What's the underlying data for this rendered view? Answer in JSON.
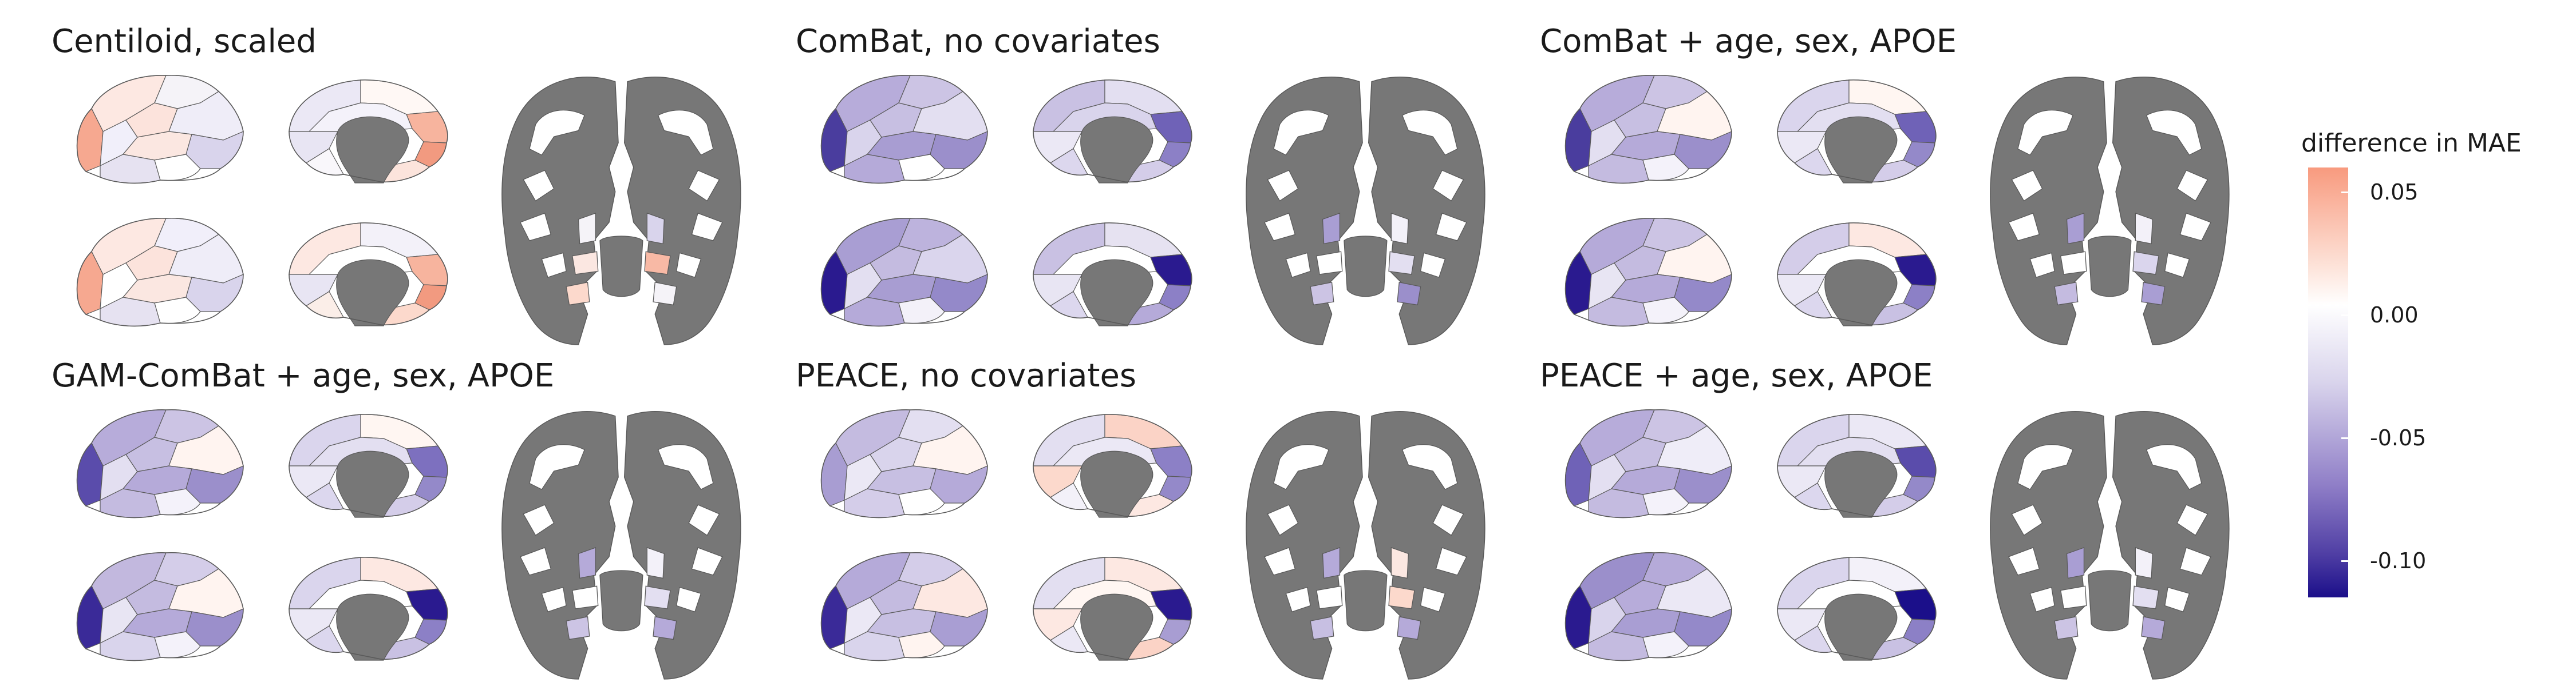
{
  "panels": [
    {
      "title": "Centiloid, scaled",
      "lat1": [
        "#fde8e2",
        "#f5f3f8",
        "#f6a890",
        "#f1effa",
        "#fce3dc",
        "#efedf8",
        "#fbe7e1",
        "#e6e2f1",
        "#ffffff",
        "#d9d4ec"
      ],
      "med1": [
        "#ebe8f5",
        "#fff8f5",
        "#f7b49e",
        "#f4f2fa",
        "#f29a80",
        "#e8e5f3",
        "#f9f7fb",
        "#fce4dc"
      ],
      "lat2": [
        "#fde8e2",
        "#f1effa",
        "#f6a890",
        "#ffffff",
        "#fce3dc",
        "#efedf8",
        "#fbe7e1",
        "#e6e2f1",
        "#ffffff",
        "#d9d4ec"
      ],
      "med2": [
        "#fde8e2",
        "#f3f1f9",
        "#f7b49e",
        "#ffffff",
        "#f29a80",
        "#e8e5f3",
        "#fbeee8",
        "#fcd9cc"
      ],
      "sub": [
        "#f5f3f8",
        "#d9d4ec",
        "#fbe7e1",
        "#f8b9a5",
        "#fcd9cc",
        "#f5f3f8"
      ]
    },
    {
      "title": "ComBat, no covariates",
      "lat1": [
        "#b7acda",
        "#ccc4e4",
        "#4a3d9e",
        "#d9d4ec",
        "#c7bfe2",
        "#e3dff1",
        "#a89dd2",
        "#b5aad9",
        "#ffffff",
        "#9b8fcb"
      ],
      "med1": [
        "#c9c1e3",
        "#e3dff1",
        "#6f62b7",
        "#d9d4ec",
        "#8c80c6",
        "#ebe8f5",
        "#dcd7ee",
        "#d4cde9"
      ],
      "lat2": [
        "#a99ed3",
        "#bdb3dd",
        "#2a1a8f",
        "#e3dff1",
        "#c4bbe0",
        "#dad5ed",
        "#a89dd2",
        "#b5aad9",
        "#f3f1f9",
        "#9489c9"
      ],
      "med2": [
        "#c9c1e3",
        "#e6e2f1",
        "#2a1a8f",
        "#ffffff",
        "#8c80c6",
        "#e8e5f3",
        "#dcd7ee",
        "#b5aad9"
      ],
      "sub": [
        "#a99ed3",
        "#f3f1f9",
        "#ffffff",
        "#e3dff1",
        "#ccc4e4",
        "#9b8fcb"
      ]
    },
    {
      "title": "ComBat + age, sex, APOE",
      "lat1": [
        "#b7acda",
        "#ccc4e4",
        "#4a3d9e",
        "#e3dff1",
        "#c7bfe2",
        "#fff4f0",
        "#b5aad9",
        "#c4bbe0",
        "#f4f2fa",
        "#9b8fcb"
      ],
      "med1": [
        "#dad5ed",
        "#fff6f2",
        "#6f62b7",
        "#e3dff1",
        "#9489c9",
        "#ebe8f5",
        "#dcd7ee",
        "#d4cde9"
      ],
      "lat2": [
        "#b5aad9",
        "#ccc4e4",
        "#2a1a8f",
        "#e8e5f3",
        "#c4bbe0",
        "#fff4f0",
        "#b5aad9",
        "#c4bbe0",
        "#f4f2fa",
        "#9489c9"
      ],
      "med2": [
        "#d4cde9",
        "#fde8e2",
        "#2a1a8f",
        "#ffffff",
        "#8c80c6",
        "#ebe8f5",
        "#dcd7ee",
        "#c9c1e3"
      ],
      "sub": [
        "#a99ed3",
        "#f3f1f9",
        "#ffffff",
        "#dad5ed",
        "#c4bbe0",
        "#a99ed3"
      ]
    },
    {
      "title": "GAM-ComBat + age, sex, APOE",
      "lat1": [
        "#b7acda",
        "#ccc4e4",
        "#5a4cab",
        "#e3dff1",
        "#c7bfe2",
        "#fff4f0",
        "#b5aad9",
        "#c4bbe0",
        "#f4f2fa",
        "#9b8fcb"
      ],
      "med1": [
        "#dad5ed",
        "#fff6f2",
        "#7d70bf",
        "#e3dff1",
        "#9489c9",
        "#ebe8f5",
        "#dcd7ee",
        "#d4cde9"
      ],
      "lat2": [
        "#c2b8de",
        "#d4cde9",
        "#3a2a98",
        "#e8e5f3",
        "#c4bbe0",
        "#fff4f0",
        "#b5aad9",
        "#d9d4ec",
        "#f4f2fa",
        "#9b8fcb"
      ],
      "med2": [
        "#dad5ed",
        "#fde8e2",
        "#2a1a8f",
        "#ffffff",
        "#8c80c6",
        "#ebe8f5",
        "#dcd7ee",
        "#c9c1e3"
      ],
      "sub": [
        "#b5aad9",
        "#f3f1f9",
        "#ffffff",
        "#e3dff1",
        "#ccc4e4",
        "#b5aad9"
      ]
    },
    {
      "title": "PEACE, no covariates",
      "lat1": [
        "#c4bbe0",
        "#e3dff1",
        "#a89dd2",
        "#ebe8f5",
        "#d9d4ec",
        "#fff4f0",
        "#c7bfe2",
        "#d4cde9",
        "#ffffff",
        "#b5aad9"
      ],
      "med1": [
        "#e3dff1",
        "#fbd3c6",
        "#8c80c6",
        "#ebe8f5",
        "#9489c9",
        "#fcd9cc",
        "#f3f1f9",
        "#fde8e2"
      ],
      "lat2": [
        "#b5aad9",
        "#d4cde9",
        "#3a2a98",
        "#ebe8f5",
        "#c4bbe0",
        "#fde8e2",
        "#c7bfe2",
        "#d9d4ec",
        "#fff4f0",
        "#a99ed3"
      ],
      "med2": [
        "#e3dff1",
        "#fde8e2",
        "#2a1a8f",
        "#fff6f2",
        "#a89dd2",
        "#fde8e2",
        "#ebe8f5",
        "#fbd3c6"
      ],
      "sub": [
        "#b5aad9",
        "#fbe7e1",
        "#ffffff",
        "#fcd9cc",
        "#c7bfe2",
        "#b5aad9"
      ]
    },
    {
      "title": "PEACE + age, sex, APOE",
      "lat1": [
        "#b7acda",
        "#ccc4e4",
        "#6f62b7",
        "#e3dff1",
        "#c7bfe2",
        "#efedf8",
        "#b5aad9",
        "#c4bbe0",
        "#f4f2fa",
        "#9b8fcb"
      ],
      "med1": [
        "#dad5ed",
        "#ebe8f5",
        "#5a4cab",
        "#e3dff1",
        "#9489c9",
        "#ebe8f5",
        "#dcd7ee",
        "#d4cde9"
      ],
      "lat2": [
        "#9b8fcb",
        "#b5aad9",
        "#2a1a8f",
        "#d9d4ec",
        "#b7acda",
        "#ebe8f5",
        "#a99ed3",
        "#c4bbe0",
        "#f4f2fa",
        "#9489c9"
      ],
      "med2": [
        "#dad5ed",
        "#f3f1f9",
        "#1b0f8a",
        "#ffffff",
        "#8c80c6",
        "#ebe8f5",
        "#dcd7ee",
        "#c9c1e3"
      ],
      "sub": [
        "#a99ed3",
        "#f3f1f9",
        "#ffffff",
        "#e3dff1",
        "#ccc4e4",
        "#b5aad9"
      ]
    }
  ],
  "legend": {
    "title": "difference in MAE",
    "ticks": [
      {
        "value": 0.05,
        "label": "0.05"
      },
      {
        "value": 0.0,
        "label": "0.00"
      },
      {
        "value": -0.05,
        "label": "-0.05"
      },
      {
        "value": -0.1,
        "label": "-0.10"
      }
    ],
    "range": [
      -0.115,
      0.06
    ],
    "colors": {
      "high": "#f89a7e",
      "mid": "#ffffff",
      "low": "#1b0f8a",
      "structure_gray": "#777777",
      "outline": "#5a5a5a"
    }
  }
}
